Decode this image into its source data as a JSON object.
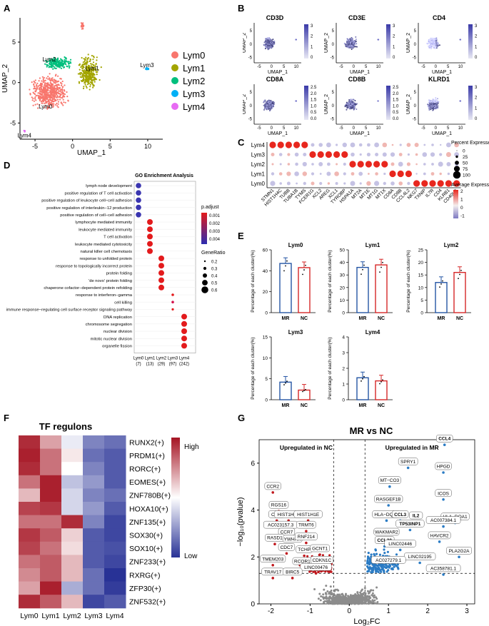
{
  "panels": {
    "A": "A",
    "B": "B",
    "C": "C",
    "D": "D",
    "E": "E",
    "F": "F",
    "G": "G"
  },
  "chart_data": [
    {
      "id": "A",
      "type": "scatter",
      "title": "",
      "xlabel": "UMAP_1",
      "ylabel": "UMAP_2",
      "xticks": [
        "-5",
        "0",
        "5",
        "10"
      ],
      "yticks": [
        "5",
        "0",
        "-5"
      ],
      "legend": [
        "Lym0",
        "Lym1",
        "Lym2",
        "Lym3",
        "Lym4"
      ],
      "colors": [
        "#F8766D",
        "#A3A500",
        "#00BF7D",
        "#00B0F6",
        "#E76BF3"
      ],
      "cluster_labels": [
        "Lym0",
        "Lym1",
        "Lym2",
        "Lym3",
        "Lym4"
      ]
    },
    {
      "id": "B",
      "type": "scatter",
      "genes": [
        "CD3D",
        "CD3E",
        "CD4",
        "CD8A",
        "CD8B",
        "KLRD1"
      ],
      "xlabel": "UMAP_1",
      "ylabel": "UMAP_2",
      "xticks": [
        "-5",
        "0",
        "5",
        "10"
      ],
      "yticks": [
        "5",
        "0",
        "-5"
      ],
      "colorbar_ticks": [
        [
          "3",
          "2",
          "1",
          "0"
        ],
        [
          "3",
          "2",
          "1",
          "0"
        ],
        [
          "3",
          "2",
          "1",
          "0"
        ],
        [
          "2.5",
          "2.0",
          "1.5",
          "1.0",
          "0.5",
          "0.0"
        ],
        [
          "2.5",
          "2.0",
          "1.5",
          "1.0",
          "0.5",
          "0.0"
        ],
        [
          "3",
          "2",
          "1",
          "0"
        ]
      ]
    },
    {
      "id": "C",
      "type": "scatter",
      "subtype": "dotplot",
      "rows": [
        "Lym4",
        "Lym3",
        "Lym2",
        "Lym1",
        "Lym0"
      ],
      "genes": [
        "STMN1",
        "HIST1H4C",
        "TUBB",
        "TUBA1B",
        "TYMS",
        "FCER1G",
        "XCL2",
        "AREG",
        "XCL1",
        "TYROBP",
        "HSPA1A",
        "MT2A",
        "MT1E",
        "MT1G",
        "MT1X",
        "CD8A",
        "CD8B",
        "CCL4L2",
        "NKG7",
        "TXNIP",
        "IL7R",
        "CD4",
        "KLRB1",
        "CD40LG"
      ],
      "legend_size_title": "Percent Expressed",
      "legend_size_values": [
        "0",
        "25",
        "50",
        "75",
        "100"
      ],
      "legend_color_title": "Average Expression",
      "legend_color_values": [
        "2",
        "1",
        "0",
        "-1"
      ]
    },
    {
      "id": "D",
      "type": "scatter",
      "subtype": "dotplot",
      "title": "GO Enrichment Analysis",
      "terms": [
        "lymph node development",
        "positive regulation of T cell activation",
        "positive regulation of leukocyte cell−cell adhesion",
        "positive regulation of interleukin−12 production",
        "positive regulation of cell−cell adhesion",
        "lymphocyte mediated immunity",
        "leukocyte mediated immunity",
        "T cell activation",
        "leukocyte mediated cytotoxicity",
        "natural killer cell chemotaxis",
        "response to unfolded protein",
        "response to topologically incorrect protein",
        "protein folding",
        "'de novo' protein folding",
        "chaperone cofactor−dependent protein refolding",
        "response to interferon−gamma",
        "cell killing",
        "immune response−regulating cell surface receptor signaling pathway",
        "DNA replication",
        "chromosome segregation",
        "nuclear division",
        "mitotic nuclear division",
        "organelle fission"
      ],
      "term_cluster": [
        0,
        0,
        0,
        0,
        0,
        1,
        1,
        1,
        1,
        1,
        2,
        2,
        2,
        2,
        2,
        3,
        3,
        3,
        4,
        4,
        4,
        4,
        4
      ],
      "clusters": [
        "Lym0",
        "Lym1",
        "Lym2",
        "Lym3",
        "Lym4"
      ],
      "cluster_counts": [
        "(7)",
        "(13)",
        "(29)",
        "(97)",
        "(242)"
      ],
      "padj_title": "p.adjust",
      "padj_ticks": [
        "0.001",
        "0.002",
        "0.003",
        "0.004"
      ],
      "generatio_title": "GeneRatio",
      "generatio_values": [
        "0.2",
        "0.3",
        "0.4",
        "0.5",
        "0.6"
      ]
    },
    {
      "id": "E",
      "type": "bar",
      "ylabel": "Percentage of each cluster(%)",
      "categories": [
        "MR",
        "NC"
      ],
      "charts": [
        {
          "title": "Lym0",
          "values": [
            47,
            43
          ],
          "ylim": [
            0,
            60
          ],
          "yticks": [
            "0",
            "20",
            "40",
            "60"
          ]
        },
        {
          "title": "Lym1",
          "values": [
            36,
            38
          ],
          "ylim": [
            0,
            50
          ],
          "yticks": [
            "0",
            "10",
            "20",
            "30",
            "40",
            "50"
          ]
        },
        {
          "title": "Lym2",
          "values": [
            12,
            16
          ],
          "ylim": [
            0,
            25
          ],
          "yticks": [
            "0",
            "5",
            "10",
            "15",
            "20",
            "25"
          ]
        },
        {
          "title": "Lym3",
          "values": [
            4.2,
            2.3
          ],
          "ylim": [
            0,
            15
          ],
          "yticks": [
            "0",
            "5",
            "10",
            "15"
          ]
        },
        {
          "title": "Lym4",
          "values": [
            1.4,
            1.2
          ],
          "ylim": [
            0,
            4
          ],
          "yticks": [
            "0",
            "1",
            "2",
            "3",
            "4"
          ]
        }
      ],
      "colors": {
        "MR": "#2455A4",
        "NC": "#D62728"
      }
    },
    {
      "id": "F",
      "type": "heatmap",
      "title": "TF regulons",
      "rows": [
        "RUNX2(+)",
        "PRDM1(+)",
        "RORC(+)",
        "EOMES(+)",
        "ZNF780B(+)",
        "HOXA10(+)",
        "ZNF135(+)",
        "SOX30(+)",
        "SOX10(+)",
        "ZNF233(+)",
        "RXRG(+)",
        "ZFP30(+)",
        "ZNF532(+)"
      ],
      "columns": [
        "Lym0",
        "Lym1",
        "Lym2",
        "Lym3",
        "Lym4"
      ],
      "values": [
        [
          0.9,
          0.4,
          -0.1,
          -0.6,
          -0.7
        ],
        [
          0.95,
          0.6,
          0.1,
          -0.7,
          -0.8
        ],
        [
          0.9,
          0.6,
          0.0,
          -0.6,
          -0.8
        ],
        [
          0.6,
          0.95,
          -0.3,
          -0.5,
          -0.8
        ],
        [
          0.3,
          0.95,
          -0.2,
          -0.6,
          -0.7
        ],
        [
          0.8,
          0.85,
          -0.2,
          -0.5,
          -0.8
        ],
        [
          0.6,
          0.6,
          0.9,
          -0.6,
          -0.9
        ],
        [
          0.85,
          0.7,
          0.2,
          -0.8,
          -0.9
        ],
        [
          0.8,
          0.6,
          0.15,
          -0.8,
          -0.85
        ],
        [
          0.6,
          0.7,
          0.3,
          -0.8,
          -0.9
        ],
        [
          0.5,
          0.7,
          0.3,
          -0.7,
          -1.0
        ],
        [
          0.4,
          0.95,
          -0.4,
          -0.7,
          -0.95
        ],
        [
          0.9,
          0.7,
          0.3,
          -0.9,
          -0.8
        ]
      ],
      "legend_high": "High",
      "legend_low": "Low"
    },
    {
      "id": "G",
      "type": "scatter",
      "subtype": "volcano",
      "title": "MR vs NC",
      "xlabel": "Log₂FC",
      "ylabel": "−log₁₀(pvalue)",
      "xlim": [
        -2.3,
        3.2
      ],
      "ylim": [
        0,
        7
      ],
      "xticks": [
        "-2",
        "-1",
        "0",
        "1",
        "2",
        "3"
      ],
      "yticks": [
        "0",
        "2",
        "4",
        "6"
      ],
      "annot_left": "Upregulated in NC",
      "annot_right": "Upregulated in MR",
      "labels_up": [
        {
          "t": "CCL4",
          "x": 2.43,
          "y": 6.78,
          "bold": true
        },
        {
          "t": "HPGD",
          "x": 2.4,
          "y": 5.6
        },
        {
          "t": "SPRY1",
          "x": 1.5,
          "y": 5.8
        },
        {
          "t": "MT−CO3",
          "x": 1.03,
          "y": 5.0
        },
        {
          "t": "ICOS",
          "x": 2.4,
          "y": 4.45
        },
        {
          "t": "RASGEF1B",
          "x": 1.0,
          "y": 4.2
        },
        {
          "t": "HLA−DQA1",
          "x": 2.7,
          "y": 3.45
        },
        {
          "t": "HLA−DQB1",
          "x": 0.95,
          "y": 3.55
        },
        {
          "t": "CCL3",
          "x": 1.3,
          "y": 3.55,
          "bold": true
        },
        {
          "t": "IL2",
          "x": 1.7,
          "y": 3.5,
          "bold": true
        },
        {
          "t": "AC007384.1",
          "x": 2.4,
          "y": 3.3
        },
        {
          "t": "TP53INP1",
          "x": 1.55,
          "y": 3.15,
          "bold": true
        },
        {
          "t": "WAKMAR2",
          "x": 0.95,
          "y": 2.8
        },
        {
          "t": "HAVCR2",
          "x": 2.3,
          "y": 2.65
        },
        {
          "t": "CCL20",
          "x": 0.9,
          "y": 2.45,
          "bold": true
        },
        {
          "t": "LINC02446",
          "x": 1.3,
          "y": 2.3
        },
        {
          "t": "PLA2G2A",
          "x": 2.8,
          "y": 2.0
        },
        {
          "t": "LINC02195",
          "x": 1.8,
          "y": 1.75
        },
        {
          "t": "AC027279.1",
          "x": 1.0,
          "y": 1.6
        },
        {
          "t": "AC358781.1",
          "x": 2.4,
          "y": 1.25
        }
      ],
      "labels_down": [
        {
          "t": "CCR2",
          "x": -1.95,
          "y": 4.75
        },
        {
          "t": "RGS16",
          "x": -1.8,
          "y": 3.95
        },
        {
          "t": "CISH",
          "x": -1.85,
          "y": 3.55
        },
        {
          "t": "HIST1H1D",
          "x": -1.55,
          "y": 3.55
        },
        {
          "t": "HIST1H1E",
          "x": -1.05,
          "y": 3.55
        },
        {
          "t": "AC023157.3",
          "x": -1.75,
          "y": 3.1
        },
        {
          "t": "TRMT6",
          "x": -1.1,
          "y": 3.1
        },
        {
          "t": "CCR7",
          "x": -1.6,
          "y": 2.8
        },
        {
          "t": "RASD1",
          "x": -1.9,
          "y": 2.55
        },
        {
          "t": "YWHAH",
          "x": -1.45,
          "y": 2.5
        },
        {
          "t": "RNF214",
          "x": -1.1,
          "y": 2.6
        },
        {
          "t": "CDC7",
          "x": -1.6,
          "y": 2.15
        },
        {
          "t": "TCHP",
          "x": -1.15,
          "y": 2.05
        },
        {
          "t": "GCNT1",
          "x": -0.75,
          "y": 2.1
        },
        {
          "t": "TMEM203",
          "x": -1.95,
          "y": 1.65
        },
        {
          "t": "RCOR1",
          "x": -1.2,
          "y": 1.55
        },
        {
          "t": "CDKN1C",
          "x": -0.7,
          "y": 1.6
        },
        {
          "t": "LINC00476",
          "x": -0.85,
          "y": 1.3
        },
        {
          "t": "TRAV17",
          "x": -1.95,
          "y": 1.1
        },
        {
          "t": "BIRC5",
          "x": -1.45,
          "y": 1.1
        }
      ]
    }
  ]
}
